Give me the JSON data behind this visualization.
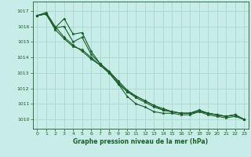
{
  "title": "Graphe pression niveau de la mer (hPa)",
  "bg_color": "#c8ede8",
  "grid_color": "#a8d8cc",
  "line_color": "#1a5c2a",
  "axis_label_color": "#1a5c2a",
  "xlim": [
    -0.5,
    23.5
  ],
  "ylim": [
    1009.4,
    1017.6
  ],
  "yticks": [
    1010,
    1011,
    1012,
    1013,
    1014,
    1015,
    1016,
    1017
  ],
  "xticks": [
    0,
    1,
    2,
    3,
    4,
    5,
    6,
    7,
    8,
    9,
    10,
    11,
    12,
    13,
    14,
    15,
    16,
    17,
    18,
    19,
    20,
    21,
    22,
    23
  ],
  "series": [
    [
      1016.7,
      1016.9,
      1016.0,
      1015.3,
      1014.8,
      1014.4,
      1013.9,
      1013.5,
      1013.0,
      1012.3,
      1011.5,
      1011.0,
      1010.8,
      1010.5,
      1010.4,
      1010.4,
      1010.3,
      1010.3,
      1010.5,
      1010.3,
      1010.2,
      1010.1,
      1010.2,
      1010.0
    ],
    [
      1016.7,
      1016.8,
      1015.9,
      1016.0,
      1015.0,
      1015.3,
      1014.2,
      1013.6,
      1013.1,
      1012.4,
      1011.8,
      1011.4,
      1011.1,
      1010.8,
      1010.6,
      1010.5,
      1010.4,
      1010.4,
      1010.5,
      1010.4,
      1010.3,
      1010.2,
      1010.3,
      1010.0
    ],
    [
      1016.7,
      1016.8,
      1015.8,
      1015.2,
      1014.7,
      1014.5,
      1014.0,
      1013.5,
      1013.0,
      1012.3,
      1011.8,
      1011.5,
      1011.2,
      1010.9,
      1010.6,
      1010.5,
      1010.4,
      1010.4,
      1010.6,
      1010.4,
      1010.3,
      1010.2,
      1010.3,
      1010.0
    ],
    [
      1016.7,
      1016.8,
      1015.9,
      1016.5,
      1015.5,
      1015.6,
      1014.4,
      1013.6,
      1013.1,
      1012.5,
      1011.9,
      1011.5,
      1011.2,
      1010.9,
      1010.7,
      1010.5,
      1010.4,
      1010.4,
      1010.6,
      1010.4,
      1010.3,
      1010.2,
      1010.3,
      1010.0
    ]
  ]
}
